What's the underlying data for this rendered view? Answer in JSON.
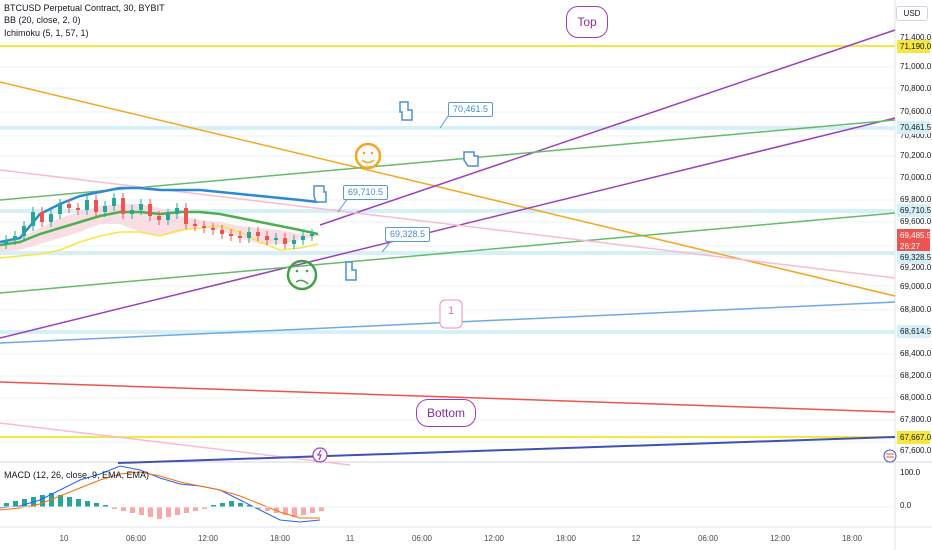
{
  "legend": {
    "title": "BTCUSD Perpetual Contract, 30, BYBIT",
    "bb": "BB (20, close, 2, 0)",
    "ichimoku": "Ichimoku (5, 1, 57, 1)",
    "macd": "MACD (12, 26, close, 9, EMA, EMA)"
  },
  "currency_button": "USD",
  "price_axis": {
    "ticks": [
      "71,400.0",
      "71,000.0",
      "70,800.0",
      "70,600.0",
      "70,400.0",
      "70,200.0",
      "70,000.0",
      "69,800.0",
      "69,600.0",
      "69,200.0",
      "69,000.0",
      "68,800.0",
      "68,400.0",
      "68,200.0",
      "68,000.0",
      "67,800.0",
      "67,600.0"
    ],
    "badges": [
      {
        "text": "71,190.0",
        "style": "yellow"
      },
      {
        "text": "70,461.5",
        "style": "lightblue"
      },
      {
        "text": "69,710.5",
        "style": "lightblue"
      },
      {
        "text": "69,485.5",
        "style": "red"
      },
      {
        "text": "26:27",
        "style": "red"
      },
      {
        "text": "69,328.5",
        "style": "lightblue"
      },
      {
        "text": "68,614.5",
        "style": "lightblue"
      },
      {
        "text": "67,667.0",
        "style": "yellow"
      }
    ]
  },
  "macd_axis": {
    "ticks": [
      "100.0",
      "0.0"
    ]
  },
  "time_axis": {
    "ticks": [
      "10",
      "06:00",
      "12:00",
      "18:00",
      "11",
      "06:00",
      "12:00",
      "18:00",
      "12",
      "06:00",
      "12:00",
      "18:00"
    ]
  },
  "annotations": {
    "callouts": [
      "70,461.5",
      "69,710.5",
      "69,328.5"
    ],
    "top_label": "Top",
    "bottom_label": "Bottom",
    "count_label": "1"
  },
  "colors": {
    "up": "#26a69a",
    "down": "#ef5350",
    "yellow_line": "#f5e642",
    "purple": "#9c3fc1",
    "green": "#66bb6a",
    "orange": "#f5a623",
    "blue": "#4a90d9",
    "red": "#ef5350",
    "pink": "#f8bbd0",
    "navy": "#3f51b5"
  }
}
